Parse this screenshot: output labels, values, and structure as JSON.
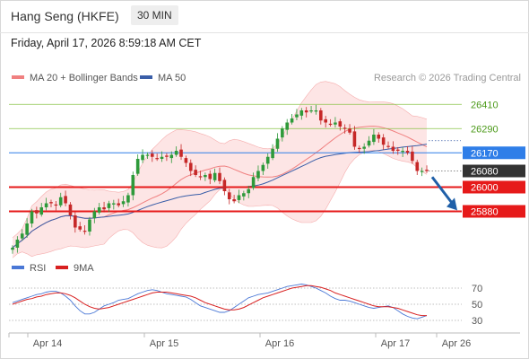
{
  "header": {
    "title": "Hang Seng (HKFE)",
    "timeframe": "30 MIN"
  },
  "datetime": "Friday, April 17, 2026 8:59:18 AM CET",
  "legend": {
    "bollinger_label": "MA 20 + Bollinger Bands",
    "ma50_label": "MA 50",
    "copyright": "Research © 2026 Trading Central",
    "rsi_label": "RSI",
    "rsi_ma_label": "9MA"
  },
  "colors": {
    "up": "#2e9a3a",
    "down": "#c62828",
    "bollinger": "#f08080",
    "bollinger_fill": "#fde0e0",
    "ma50": "#3a5ea8",
    "resistance_green": "#8bc34a",
    "resistance_blue": "#2f7ee8",
    "support_red": "#e61a1a",
    "current": "#333333",
    "rsi": "#4a78d6",
    "rsi_ma": "#d82020",
    "arrow": "#1f5fa8"
  },
  "chart_data": [
    {
      "type": "candlestick",
      "title": "Hang Seng (HKFE)",
      "timeframe": "30 MIN",
      "x_labels": [
        "Apr 14",
        "Apr 15",
        "Apr 16",
        "Apr 17",
        "Apr 26"
      ],
      "ylim": [
        25700,
        26500
      ],
      "levels": [
        {
          "value": 26410,
          "label": "26410",
          "style": "green"
        },
        {
          "value": 26290,
          "label": "26290",
          "style": "green"
        },
        {
          "value": 26170,
          "label": "26170",
          "style": "blue"
        },
        {
          "value": 26080,
          "label": "26080",
          "style": "current"
        },
        {
          "value": 26000,
          "label": "26000",
          "style": "red"
        },
        {
          "value": 25880,
          "label": "25880",
          "style": "red"
        }
      ],
      "closes": [
        25700,
        25740,
        25770,
        25820,
        25880,
        25870,
        25900,
        25920,
        25920,
        25910,
        25950,
        25920,
        25860,
        25800,
        25790,
        25780,
        25840,
        25880,
        25900,
        25890,
        25920,
        25920,
        25910,
        25930,
        25960,
        26060,
        26140,
        26160,
        26160,
        26150,
        26140,
        26150,
        26150,
        26160,
        26180,
        26150,
        26120,
        26080,
        26060,
        26050,
        26060,
        26040,
        26070,
        26030,
        25980,
        25940,
        25930,
        25960,
        25970,
        25990,
        26050,
        26080,
        26110,
        26150,
        26190,
        26240,
        26290,
        26320,
        26340,
        26360,
        26380,
        26370,
        26380,
        26380,
        26330,
        26320,
        26310,
        26320,
        26300,
        26290,
        26270,
        26200,
        26190,
        26200,
        26230,
        26260,
        26240,
        26210,
        26200,
        26180,
        26180,
        26180,
        26170,
        26130,
        26080,
        26080,
        26080
      ],
      "indicators": [
        "MA 20 + Bollinger Bands",
        "MA 50"
      ],
      "projection_arrow": "bearish, toward 25880"
    },
    {
      "type": "line",
      "title": "RSI",
      "series": [
        {
          "name": "RSI",
          "values": [
            52,
            54,
            56,
            58,
            60,
            62,
            63,
            65,
            66,
            66,
            64,
            60,
            55,
            48,
            42,
            38,
            38,
            40,
            44,
            48,
            50,
            52,
            55,
            56,
            57,
            60,
            63,
            65,
            67,
            68,
            67,
            65,
            63,
            62,
            61,
            60,
            59,
            56,
            52,
            48,
            46,
            44,
            42,
            40,
            40,
            42,
            46,
            50,
            54,
            58,
            60,
            62,
            63,
            64,
            66,
            68,
            70,
            72,
            73,
            74,
            75,
            74,
            72,
            70,
            67,
            64,
            60,
            57,
            55,
            55,
            54,
            52,
            50,
            48,
            46,
            45,
            46,
            47,
            48,
            46,
            42,
            38,
            35,
            33,
            32,
            34,
            36
          ]
        },
        {
          "name": "9MA",
          "values": [
            50,
            52,
            54,
            56,
            57,
            59,
            60,
            62,
            63,
            64,
            64,
            63,
            61,
            58,
            54,
            50,
            47,
            45,
            44,
            45,
            46,
            48,
            50,
            52,
            54,
            56,
            58,
            60,
            62,
            64,
            65,
            65,
            65,
            64,
            63,
            62,
            61,
            60,
            58,
            55,
            52,
            50,
            48,
            46,
            44,
            43,
            43,
            44,
            46,
            49,
            52,
            55,
            58,
            60,
            62,
            64,
            66,
            68,
            70,
            71,
            72,
            73,
            73,
            72,
            71,
            69,
            67,
            64,
            62,
            60,
            58,
            56,
            54,
            52,
            50,
            48,
            47,
            47,
            47,
            46,
            45,
            43,
            41,
            39,
            37,
            36,
            36
          ]
        }
      ],
      "ylim": [
        20,
        80
      ],
      "levels": [
        70,
        50,
        30
      ],
      "tick_labels": [
        "70",
        "50",
        "30"
      ]
    }
  ]
}
